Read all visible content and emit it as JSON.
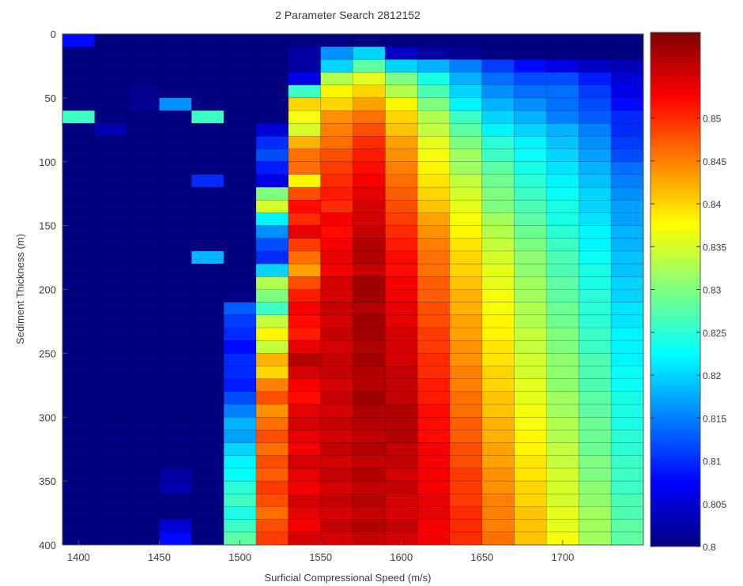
{
  "chart_data": {
    "type": "heatmap",
    "title": "2 Parameter Search 2812152",
    "xlabel": "Surficial Compressional Speed (m/s)",
    "ylabel": "Sediment Thickness (m)",
    "x": [
      1400,
      1420,
      1440,
      1460,
      1480,
      1500,
      1520,
      1540,
      1560,
      1580,
      1600,
      1620,
      1640,
      1660,
      1680,
      1700,
      1720,
      1740
    ],
    "y": [
      5,
      15,
      25,
      35,
      45,
      55,
      65,
      75,
      85,
      95,
      105,
      115,
      125,
      135,
      145,
      155,
      165,
      175,
      185,
      195,
      205,
      215,
      225,
      235,
      245,
      255,
      265,
      275,
      285,
      295,
      305,
      315,
      325,
      335,
      345,
      355,
      365,
      375,
      385,
      395
    ],
    "xlim": [
      1390,
      1750
    ],
    "ylim": [
      400,
      0
    ],
    "xticks": [
      1400,
      1450,
      1500,
      1550,
      1600,
      1650,
      1700
    ],
    "yticks": [
      0,
      50,
      100,
      150,
      200,
      250,
      300,
      350,
      400
    ],
    "colorbar": {
      "colormap": "jet",
      "range": [
        0.8,
        0.86
      ],
      "ticks": [
        0.8,
        0.805,
        0.81,
        0.815,
        0.82,
        0.825,
        0.83,
        0.835,
        0.84,
        0.845,
        0.85
      ],
      "tick_labels": [
        "0.8",
        "0.805",
        "0.81",
        "0.815",
        "0.82",
        "0.825",
        "0.83",
        "0.835",
        "0.84",
        "0.845",
        "0.85"
      ]
    },
    "z": [
      [
        0.808,
        0.8,
        0.8,
        0.8,
        0.8,
        0.8,
        0.8,
        0.8,
        0.8,
        0.8,
        0.8,
        0.8,
        0.8,
        0.8,
        0.8,
        0.8,
        0.8,
        0.8
      ],
      [
        0.8,
        0.8,
        0.8,
        0.8,
        0.8,
        0.8,
        0.8,
        0.802,
        0.816,
        0.82,
        0.804,
        0.802,
        0.801,
        0.8,
        0.8,
        0.8,
        0.8,
        0.8
      ],
      [
        0.8,
        0.8,
        0.8,
        0.8,
        0.8,
        0.8,
        0.8,
        0.802,
        0.82,
        0.828,
        0.82,
        0.818,
        0.815,
        0.811,
        0.808,
        0.806,
        0.804,
        0.803
      ],
      [
        0.8,
        0.8,
        0.8,
        0.8,
        0.8,
        0.8,
        0.8,
        0.806,
        0.833,
        0.836,
        0.83,
        0.824,
        0.818,
        0.814,
        0.812,
        0.812,
        0.809,
        0.805
      ],
      [
        0.8,
        0.8,
        0.801,
        0.8,
        0.8,
        0.8,
        0.8,
        0.826,
        0.838,
        0.84,
        0.833,
        0.827,
        0.82,
        0.816,
        0.814,
        0.814,
        0.811,
        0.806
      ],
      [
        0.8,
        0.8,
        0.801,
        0.816,
        0.8,
        0.8,
        0.8,
        0.84,
        0.84,
        0.843,
        0.838,
        0.83,
        0.822,
        0.818,
        0.816,
        0.814,
        0.812,
        0.808
      ],
      [
        0.826,
        0.8,
        0.8,
        0.8,
        0.826,
        0.8,
        0.8,
        0.837,
        0.844,
        0.846,
        0.84,
        0.833,
        0.826,
        0.82,
        0.818,
        0.815,
        0.813,
        0.81
      ],
      [
        0.8,
        0.803,
        0.8,
        0.8,
        0.8,
        0.8,
        0.805,
        0.835,
        0.845,
        0.848,
        0.841,
        0.834,
        0.828,
        0.822,
        0.82,
        0.818,
        0.815,
        0.81
      ],
      [
        0.8,
        0.8,
        0.8,
        0.8,
        0.8,
        0.8,
        0.81,
        0.842,
        0.846,
        0.85,
        0.843,
        0.836,
        0.83,
        0.825,
        0.822,
        0.819,
        0.816,
        0.811
      ],
      [
        0.8,
        0.8,
        0.8,
        0.8,
        0.8,
        0.8,
        0.812,
        0.846,
        0.848,
        0.851,
        0.844,
        0.837,
        0.832,
        0.826,
        0.823,
        0.82,
        0.817,
        0.812
      ],
      [
        0.8,
        0.8,
        0.8,
        0.8,
        0.8,
        0.8,
        0.809,
        0.846,
        0.849,
        0.852,
        0.845,
        0.838,
        0.832,
        0.828,
        0.824,
        0.821,
        0.818,
        0.814
      ],
      [
        0.8,
        0.8,
        0.8,
        0.8,
        0.81,
        0.8,
        0.806,
        0.838,
        0.85,
        0.853,
        0.846,
        0.839,
        0.834,
        0.829,
        0.825,
        0.822,
        0.819,
        0.815
      ],
      [
        0.8,
        0.8,
        0.8,
        0.8,
        0.8,
        0.8,
        0.83,
        0.848,
        0.851,
        0.854,
        0.847,
        0.84,
        0.835,
        0.83,
        0.826,
        0.823,
        0.82,
        0.816
      ],
      [
        0.8,
        0.8,
        0.8,
        0.8,
        0.8,
        0.8,
        0.835,
        0.852,
        0.85,
        0.855,
        0.848,
        0.841,
        0.836,
        0.83,
        0.827,
        0.824,
        0.82,
        0.817
      ],
      [
        0.8,
        0.8,
        0.8,
        0.8,
        0.8,
        0.8,
        0.822,
        0.85,
        0.853,
        0.855,
        0.849,
        0.843,
        0.837,
        0.832,
        0.828,
        0.824,
        0.821,
        0.817
      ],
      [
        0.8,
        0.8,
        0.8,
        0.8,
        0.8,
        0.8,
        0.816,
        0.854,
        0.852,
        0.856,
        0.85,
        0.844,
        0.838,
        0.833,
        0.829,
        0.825,
        0.822,
        0.818
      ],
      [
        0.8,
        0.8,
        0.8,
        0.8,
        0.8,
        0.8,
        0.812,
        0.849,
        0.853,
        0.857,
        0.851,
        0.845,
        0.839,
        0.834,
        0.83,
        0.826,
        0.822,
        0.818
      ],
      [
        0.8,
        0.8,
        0.8,
        0.8,
        0.818,
        0.8,
        0.81,
        0.846,
        0.854,
        0.857,
        0.852,
        0.846,
        0.84,
        0.835,
        0.831,
        0.827,
        0.823,
        0.819
      ],
      [
        0.8,
        0.8,
        0.8,
        0.8,
        0.8,
        0.8,
        0.82,
        0.843,
        0.853,
        0.856,
        0.852,
        0.846,
        0.84,
        0.836,
        0.831,
        0.827,
        0.824,
        0.819
      ],
      [
        0.8,
        0.8,
        0.8,
        0.8,
        0.8,
        0.8,
        0.833,
        0.848,
        0.855,
        0.858,
        0.853,
        0.847,
        0.841,
        0.836,
        0.832,
        0.828,
        0.824,
        0.82
      ],
      [
        0.8,
        0.8,
        0.8,
        0.8,
        0.8,
        0.8,
        0.83,
        0.851,
        0.855,
        0.858,
        0.853,
        0.847,
        0.842,
        0.837,
        0.832,
        0.828,
        0.825,
        0.82
      ],
      [
        0.8,
        0.8,
        0.8,
        0.8,
        0.8,
        0.813,
        0.826,
        0.853,
        0.856,
        0.857,
        0.854,
        0.848,
        0.842,
        0.837,
        0.833,
        0.829,
        0.825,
        0.821
      ],
      [
        0.8,
        0.8,
        0.8,
        0.8,
        0.8,
        0.811,
        0.834,
        0.852,
        0.855,
        0.858,
        0.854,
        0.848,
        0.843,
        0.838,
        0.833,
        0.829,
        0.825,
        0.821
      ],
      [
        0.8,
        0.8,
        0.8,
        0.8,
        0.8,
        0.81,
        0.838,
        0.851,
        0.856,
        0.858,
        0.855,
        0.849,
        0.843,
        0.838,
        0.834,
        0.83,
        0.826,
        0.822
      ],
      [
        0.8,
        0.8,
        0.8,
        0.8,
        0.8,
        0.808,
        0.834,
        0.854,
        0.855,
        0.857,
        0.855,
        0.849,
        0.844,
        0.839,
        0.834,
        0.83,
        0.826,
        0.822
      ],
      [
        0.8,
        0.8,
        0.8,
        0.8,
        0.8,
        0.81,
        0.842,
        0.857,
        0.856,
        0.858,
        0.855,
        0.85,
        0.844,
        0.839,
        0.835,
        0.831,
        0.827,
        0.822
      ],
      [
        0.8,
        0.8,
        0.8,
        0.8,
        0.8,
        0.81,
        0.84,
        0.855,
        0.856,
        0.857,
        0.856,
        0.85,
        0.845,
        0.84,
        0.835,
        0.831,
        0.827,
        0.823
      ],
      [
        0.8,
        0.8,
        0.8,
        0.8,
        0.8,
        0.809,
        0.845,
        0.853,
        0.855,
        0.857,
        0.856,
        0.851,
        0.845,
        0.84,
        0.836,
        0.831,
        0.827,
        0.823
      ],
      [
        0.8,
        0.8,
        0.8,
        0.8,
        0.8,
        0.812,
        0.848,
        0.852,
        0.856,
        0.858,
        0.856,
        0.851,
        0.846,
        0.841,
        0.836,
        0.832,
        0.828,
        0.824
      ],
      [
        0.8,
        0.8,
        0.8,
        0.8,
        0.8,
        0.815,
        0.844,
        0.854,
        0.855,
        0.857,
        0.857,
        0.852,
        0.846,
        0.841,
        0.837,
        0.832,
        0.828,
        0.824
      ],
      [
        0.8,
        0.8,
        0.8,
        0.8,
        0.8,
        0.818,
        0.846,
        0.855,
        0.856,
        0.857,
        0.857,
        0.852,
        0.847,
        0.842,
        0.837,
        0.833,
        0.829,
        0.824
      ],
      [
        0.8,
        0.8,
        0.8,
        0.8,
        0.8,
        0.817,
        0.848,
        0.854,
        0.855,
        0.856,
        0.857,
        0.852,
        0.847,
        0.842,
        0.838,
        0.833,
        0.829,
        0.825
      ],
      [
        0.8,
        0.8,
        0.8,
        0.8,
        0.8,
        0.82,
        0.846,
        0.853,
        0.856,
        0.857,
        0.856,
        0.853,
        0.848,
        0.843,
        0.838,
        0.834,
        0.829,
        0.825
      ],
      [
        0.8,
        0.8,
        0.8,
        0.8,
        0.8,
        0.822,
        0.848,
        0.855,
        0.855,
        0.856,
        0.856,
        0.853,
        0.848,
        0.843,
        0.839,
        0.834,
        0.83,
        0.826
      ],
      [
        0.8,
        0.8,
        0.8,
        0.802,
        0.8,
        0.823,
        0.847,
        0.854,
        0.856,
        0.857,
        0.855,
        0.853,
        0.849,
        0.844,
        0.839,
        0.835,
        0.83,
        0.826
      ],
      [
        0.8,
        0.8,
        0.8,
        0.803,
        0.8,
        0.825,
        0.849,
        0.853,
        0.855,
        0.856,
        0.856,
        0.853,
        0.849,
        0.844,
        0.84,
        0.835,
        0.831,
        0.826
      ],
      [
        0.8,
        0.8,
        0.8,
        0.8,
        0.8,
        0.826,
        0.848,
        0.855,
        0.856,
        0.857,
        0.855,
        0.854,
        0.849,
        0.845,
        0.84,
        0.835,
        0.831,
        0.827
      ],
      [
        0.8,
        0.8,
        0.8,
        0.8,
        0.8,
        0.824,
        0.846,
        0.854,
        0.855,
        0.856,
        0.855,
        0.854,
        0.85,
        0.845,
        0.841,
        0.836,
        0.832,
        0.827
      ],
      [
        0.8,
        0.8,
        0.8,
        0.805,
        0.8,
        0.826,
        0.848,
        0.853,
        0.856,
        0.857,
        0.856,
        0.853,
        0.85,
        0.845,
        0.841,
        0.836,
        0.832,
        0.828
      ],
      [
        0.8,
        0.8,
        0.8,
        0.808,
        0.8,
        0.828,
        0.849,
        0.855,
        0.855,
        0.856,
        0.855,
        0.853,
        0.85,
        0.846,
        0.841,
        0.837,
        0.832,
        0.828
      ]
    ]
  }
}
